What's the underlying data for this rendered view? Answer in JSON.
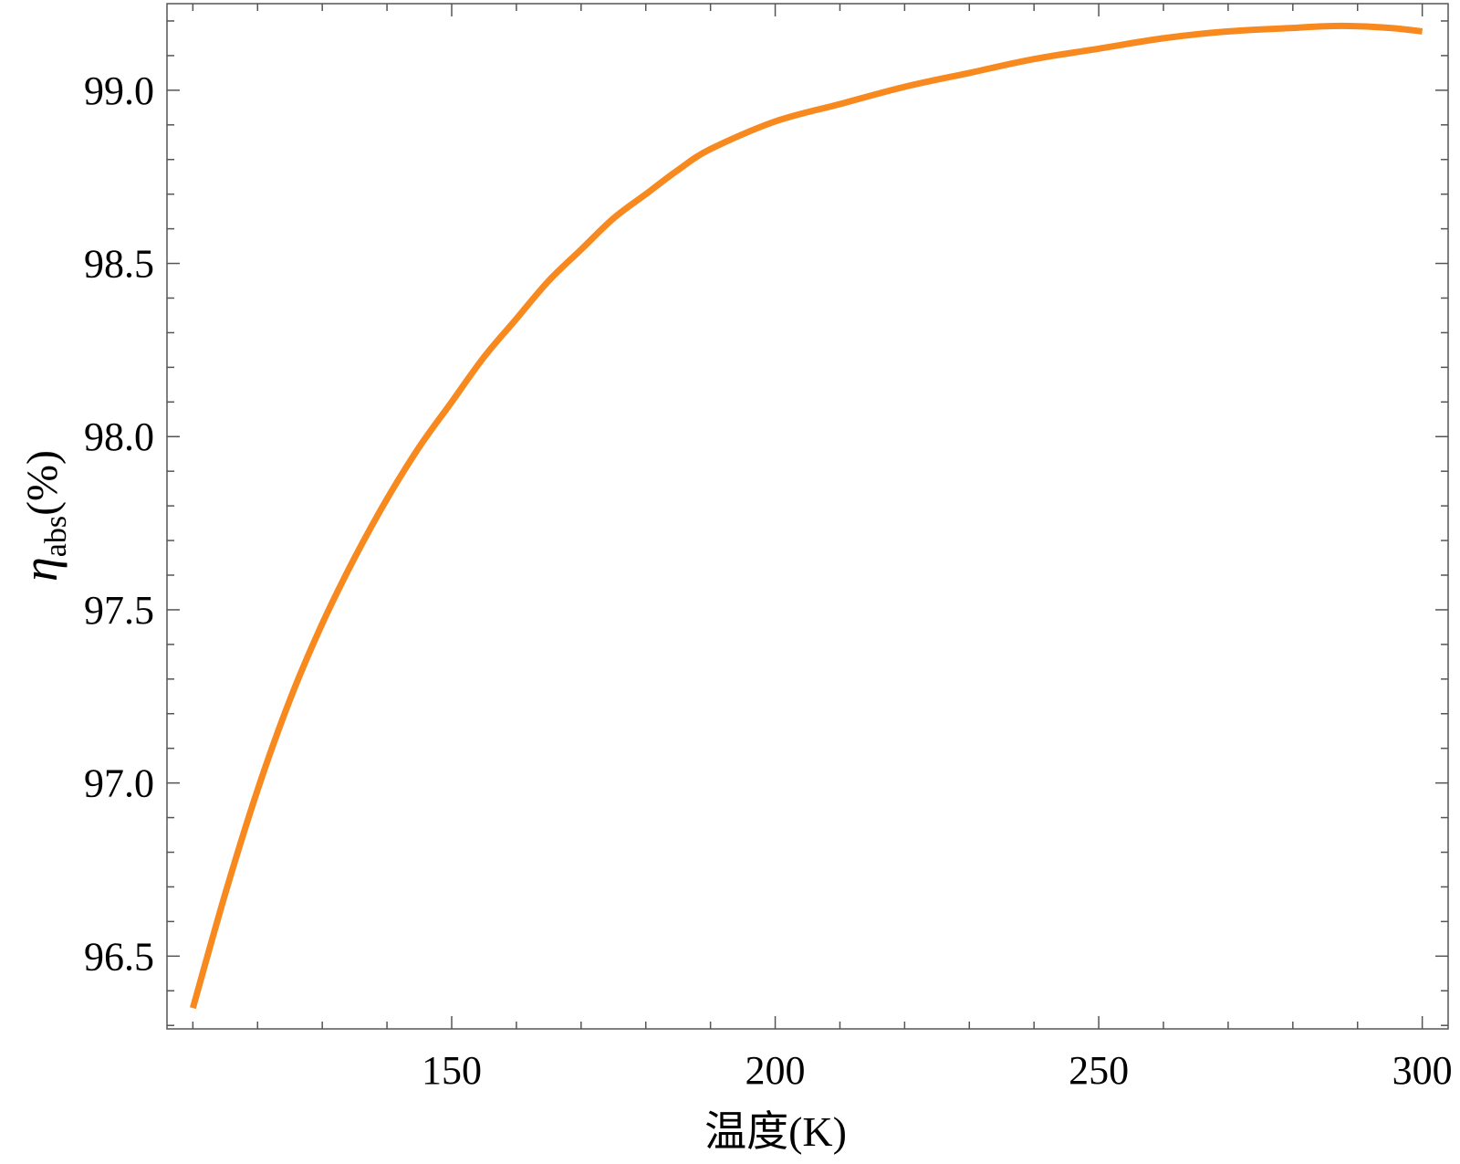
{
  "chart_data": {
    "type": "line",
    "title": "",
    "xlabel": "温度(K)",
    "ylabel": {
      "symbol": "η",
      "subscript": "abs",
      "unit": "(%)"
    },
    "xlim": [
      106,
      304
    ],
    "ylim": [
      96.29,
      99.25
    ],
    "x_major_ticks": [
      150,
      200,
      250,
      300
    ],
    "x_tick_labels": [
      "150",
      "200",
      "250",
      "300"
    ],
    "y_major_ticks": [
      96.5,
      97.0,
      97.5,
      98.0,
      98.5,
      99.0
    ],
    "y_tick_labels": [
      "96.5",
      "97.0",
      "97.5",
      "98.0",
      "98.5",
      "99.0"
    ],
    "grid": false,
    "frame": true,
    "series": [
      {
        "color": "#f7891e",
        "x": [
          110,
          115,
          120,
          125,
          130,
          135,
          140,
          145,
          150,
          155,
          160,
          165,
          170,
          175,
          180,
          185,
          190,
          200,
          210,
          220,
          230,
          240,
          250,
          260,
          270,
          280,
          285,
          290,
          295,
          300
        ],
        "y": [
          96.35,
          96.68,
          96.98,
          97.24,
          97.46,
          97.65,
          97.82,
          97.97,
          98.1,
          98.23,
          98.34,
          98.45,
          98.54,
          98.63,
          98.7,
          98.77,
          98.83,
          98.91,
          98.96,
          99.01,
          99.05,
          99.09,
          99.12,
          99.15,
          99.17,
          99.18,
          99.185,
          99.185,
          99.18,
          99.17
        ]
      }
    ]
  }
}
